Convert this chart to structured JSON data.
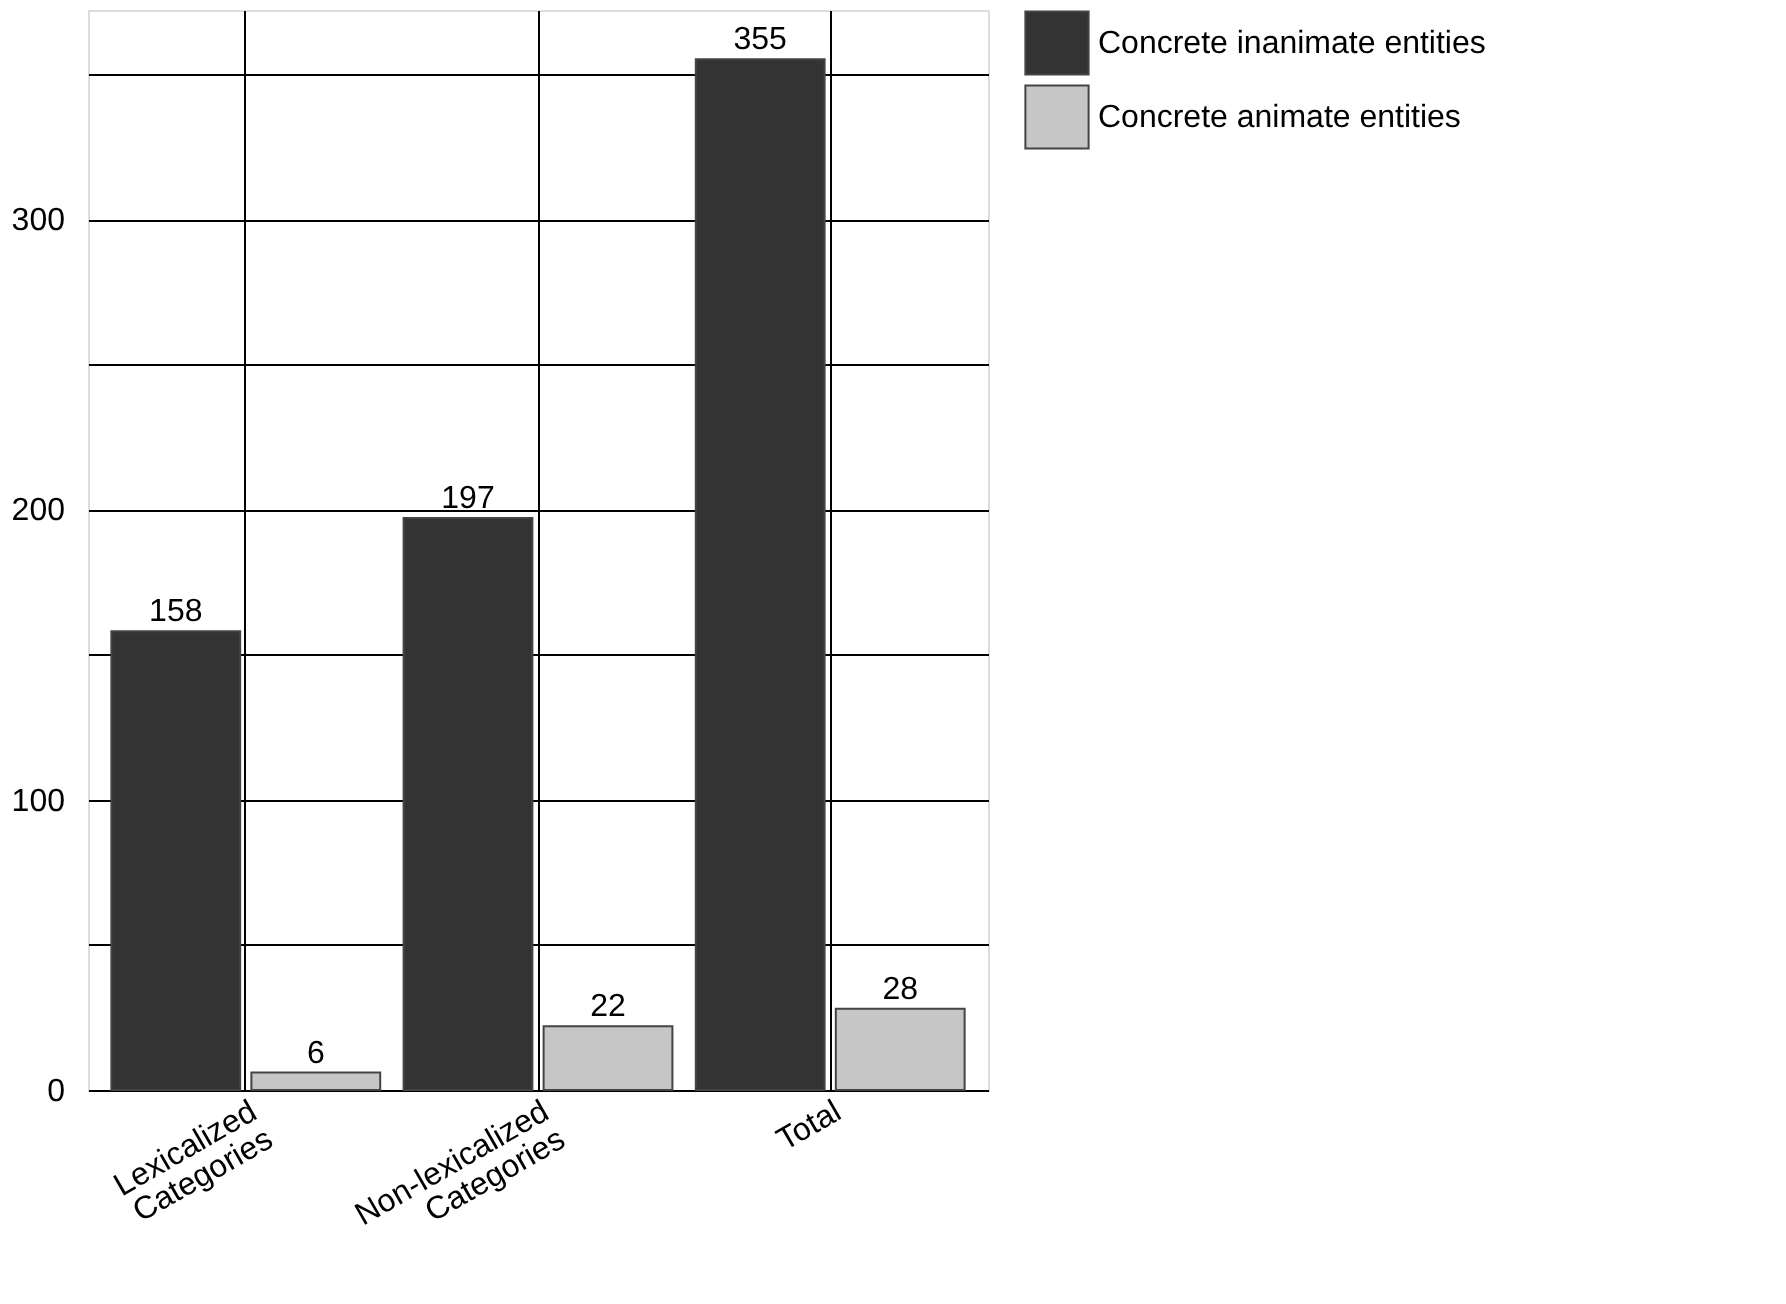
{
  "chart_data": {
    "type": "bar",
    "categories": [
      "Lexicalized Categories",
      "Non-lexicalized Categories",
      "Total"
    ],
    "series": [
      {
        "name": "Concrete inanimate entities",
        "color": "#333333",
        "values": [
          158,
          197,
          355
        ]
      },
      {
        "name": "Concrete animate entities",
        "color": "#c6c6c6",
        "values": [
          6,
          22,
          28
        ]
      }
    ],
    "ylim": [
      0,
      372
    ],
    "yticks": [
      0,
      {
        "value": 50,
        "label": null
      },
      100,
      {
        "value": 150,
        "label": null
      },
      200,
      {
        "value": 250,
        "label": null
      },
      300,
      {
        "value": 350,
        "label": null
      }
    ],
    "grid": true,
    "legend": "right",
    "data_labels": true
  }
}
